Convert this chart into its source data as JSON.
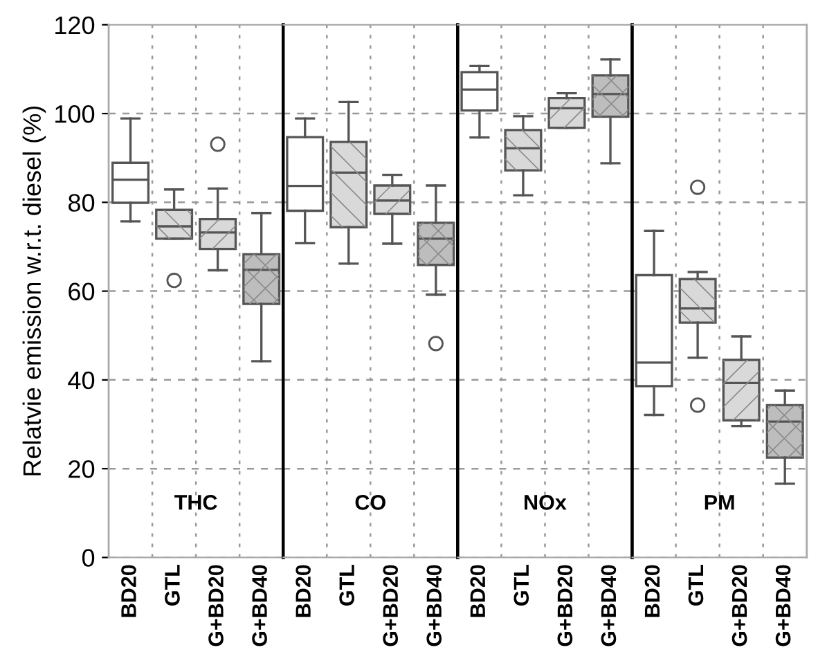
{
  "chart_data": [
    {
      "type": "box",
      "ylabel": "Relatvie emission w.r.t. diesel (%)",
      "categories": [
        "BD20",
        "GTL",
        "G+BD20",
        "G+BD40"
      ],
      "colors": [
        "#ffffff",
        "#d9d9d9",
        "#d9d9d9",
        "#bdbdbd"
      ],
      "ylim": [
        0,
        120
      ],
      "yticks": [
        0,
        20,
        40,
        60,
        80,
        100,
        120
      ],
      "grid": true,
      "annotations": [
        "THC"
      ],
      "boxes": [
        {
          "low": 75.7,
          "q1": 79.9,
          "median": 85.1,
          "q3": 88.9,
          "high": 98.9
        },
        {
          "low": 71.8,
          "q1": 71.8,
          "median": 74.6,
          "q3": 78.3,
          "high": 82.9,
          "outliers": [
            62.4
          ]
        },
        {
          "low": 64.7,
          "q1": 69.5,
          "median": 73.2,
          "q3": 76.2,
          "high": 83.1,
          "outliers": [
            93.1
          ]
        },
        {
          "low": 44.2,
          "q1": 57.1,
          "median": 64.8,
          "q3": 68.3,
          "high": 77.6
        }
      ]
    },
    {
      "type": "box",
      "categories": [
        "BD20",
        "GTL",
        "G+BD20",
        "G+BD40"
      ],
      "colors": [
        "#ffffff",
        "#d9d9d9",
        "#d9d9d9",
        "#bdbdbd"
      ],
      "ylim": [
        0,
        120
      ],
      "tick_labels": "x",
      "grid": true,
      "annotations": [
        "CO"
      ],
      "boxes": [
        {
          "low": 70.8,
          "q1": 78.1,
          "median": 83.7,
          "q3": 94.7,
          "high": 98.9
        },
        {
          "low": 66.2,
          "q1": 74.4,
          "median": 86.7,
          "q3": 93.6,
          "high": 102.6
        },
        {
          "low": 70.7,
          "q1": 77.4,
          "median": 80.4,
          "q3": 83.8,
          "high": 86.2
        },
        {
          "low": 59.2,
          "q1": 65.9,
          "median": 71.8,
          "q3": 75.4,
          "high": 83.8,
          "outliers": [
            48.2
          ]
        }
      ]
    },
    {
      "type": "box",
      "categories": [
        "BD20",
        "GTL",
        "G+BD20",
        "G+BD40"
      ],
      "colors": [
        "#ffffff",
        "#d9d9d9",
        "#d9d9d9",
        "#bdbdbd"
      ],
      "ylim": [
        0,
        120
      ],
      "tick_labels": "x",
      "grid": true,
      "annotations": [
        "NOx"
      ],
      "boxes": [
        {
          "low": 94.6,
          "q1": 100.7,
          "median": 105.4,
          "q3": 109.3,
          "high": 110.7
        },
        {
          "low": 81.6,
          "q1": 87.2,
          "median": 92.2,
          "q3": 96.3,
          "high": 99.4
        },
        {
          "low": 96.8,
          "q1": 96.8,
          "median": 101.2,
          "q3": 103.5,
          "high": 104.6
        },
        {
          "low": 88.8,
          "q1": 99.3,
          "median": 104.4,
          "q3": 108.6,
          "high": 112.2
        }
      ]
    },
    {
      "type": "box",
      "categories": [
        "BD20",
        "GTL",
        "G+BD20",
        "G+BD40"
      ],
      "colors": [
        "#ffffff",
        "#d9d9d9",
        "#d9d9d9",
        "#bdbdbd"
      ],
      "ylim": [
        0,
        120
      ],
      "tick_labels": "x",
      "grid": true,
      "annotations": [
        "PM"
      ],
      "boxes": [
        {
          "low": 32.1,
          "q1": 38.6,
          "median": 43.9,
          "q3": 63.6,
          "high": 73.6
        },
        {
          "low": 45.0,
          "q1": 52.9,
          "median": 56.1,
          "q3": 62.7,
          "high": 64.3,
          "outliers": [
            83.4,
            34.3
          ]
        },
        {
          "low": 29.6,
          "q1": 30.9,
          "median": 39.3,
          "q3": 44.5,
          "high": 49.8
        },
        {
          "low": 16.6,
          "q1": 22.5,
          "median": 30.6,
          "q3": 34.3,
          "high": 37.6
        }
      ]
    }
  ]
}
